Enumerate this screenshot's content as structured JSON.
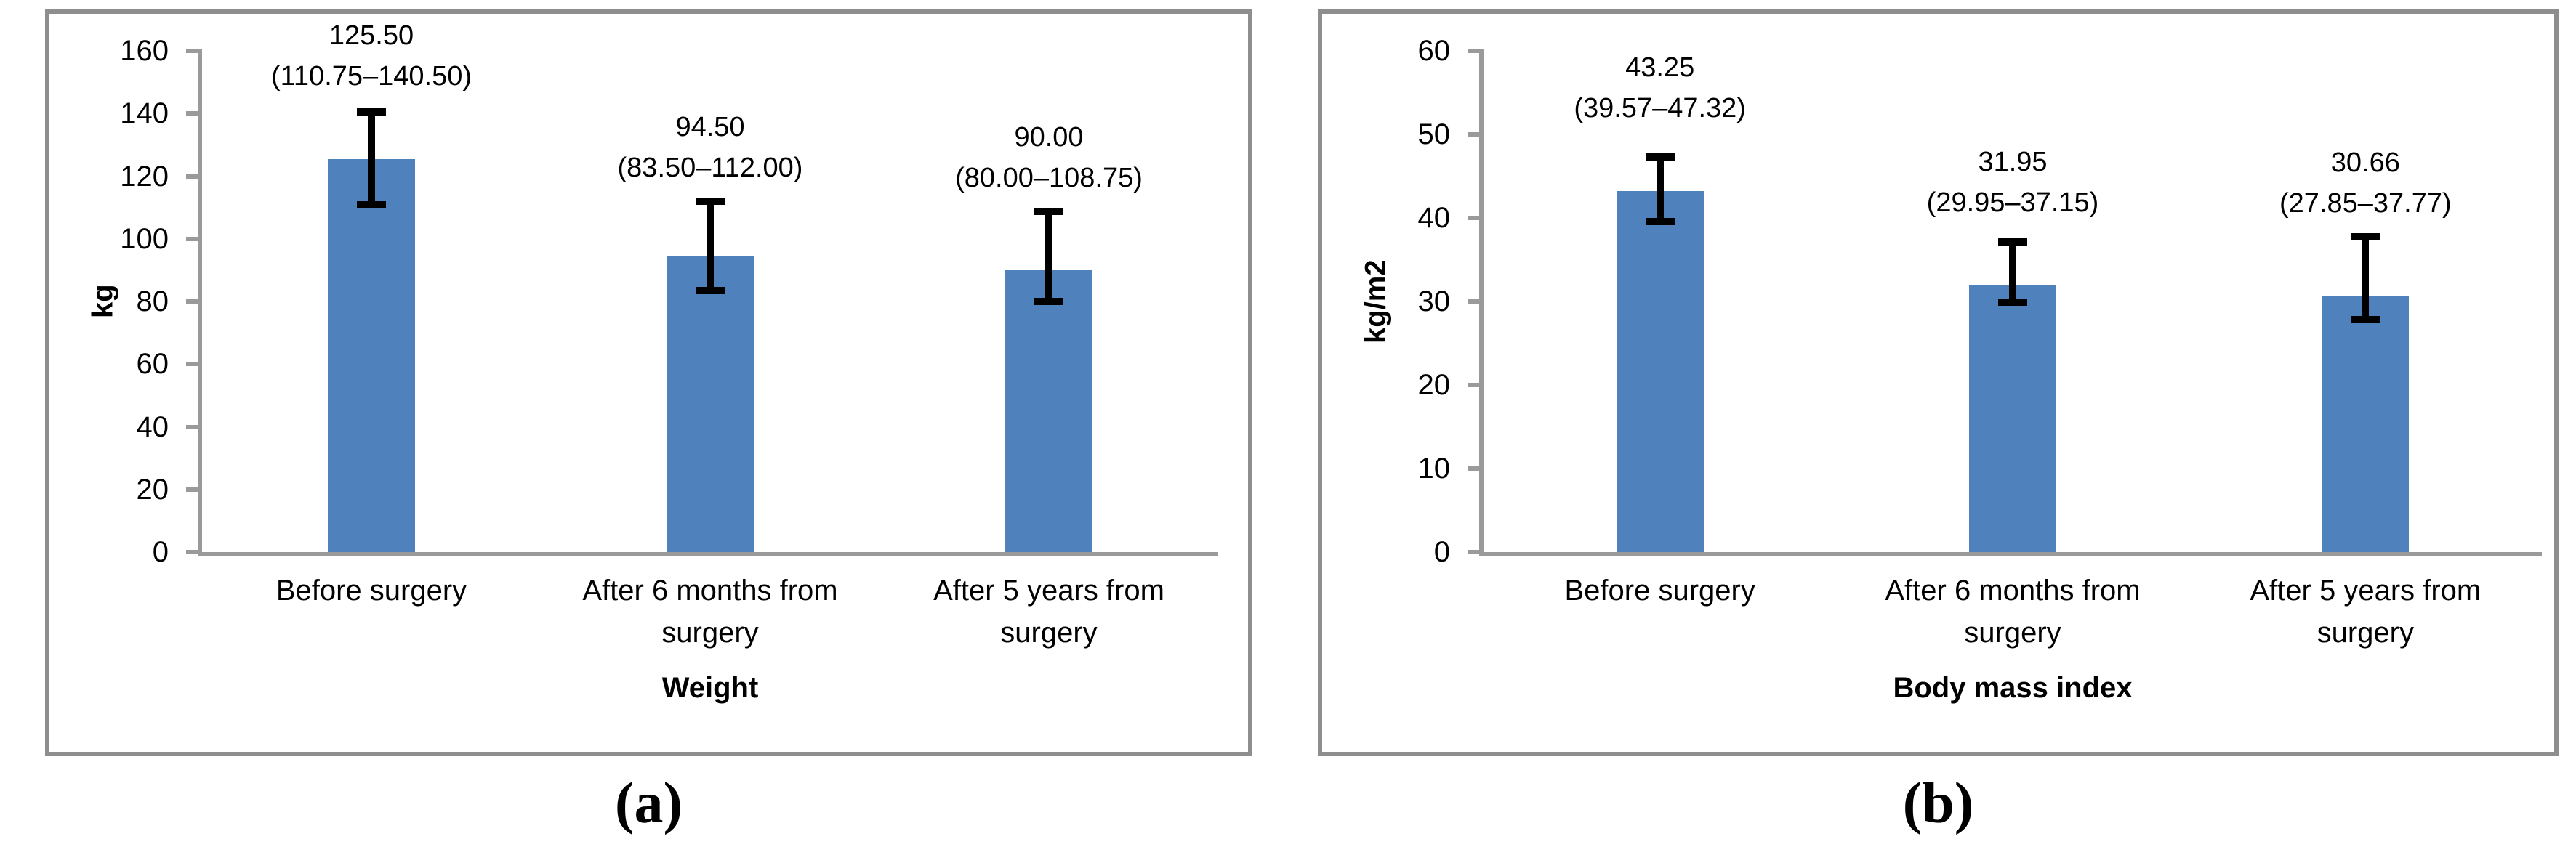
{
  "figure": {
    "captions": {
      "a": "(a)",
      "b": "(b)"
    }
  },
  "colors": {
    "bar": "#4f81bd",
    "axis": "#9a9a9a",
    "panel_border": "#8e8e8e",
    "error_bar": "#000000",
    "text": "#000000",
    "background": "#ffffff"
  },
  "chart_data": [
    {
      "type": "bar",
      "panel": "a",
      "title": "",
      "xlabel": "Weight",
      "ylabel": "kg",
      "ylim": [
        0,
        160
      ],
      "yticks": [
        0,
        20,
        40,
        60,
        80,
        100,
        120,
        140,
        160
      ],
      "grid": false,
      "legend": false,
      "categories": [
        "Before surgery",
        "After 6 months from surgery",
        "After 5 years from surgery"
      ],
      "values": [
        125.5,
        94.5,
        90.0
      ],
      "error_low": [
        110.75,
        83.5,
        80.0
      ],
      "error_high": [
        140.5,
        112.0,
        108.75
      ],
      "labels": [
        {
          "line1": "125.50",
          "line2": "(110.75–140.50)"
        },
        {
          "line1": "94.50",
          "line2": "(83.50–112.00)"
        },
        {
          "line1": "90.00",
          "line2": "(80.00–108.75)"
        }
      ]
    },
    {
      "type": "bar",
      "panel": "b",
      "title": "",
      "xlabel": "Body mass index",
      "ylabel": "kg/m2",
      "ylim": [
        0,
        60
      ],
      "yticks": [
        0,
        10,
        20,
        30,
        40,
        50,
        60
      ],
      "grid": false,
      "legend": false,
      "categories": [
        "Before surgery",
        "After 6 months from surgery",
        "After 5 years from surgery"
      ],
      "values": [
        43.25,
        31.95,
        30.66
      ],
      "error_low": [
        39.57,
        29.95,
        27.85
      ],
      "error_high": [
        47.32,
        37.15,
        37.77
      ],
      "labels": [
        {
          "line1": "43.25",
          "line2": "(39.57–47.32)"
        },
        {
          "line1": "31.95",
          "line2": "(29.95–37.15)"
        },
        {
          "line1": "30.66",
          "line2": "(27.85–37.77)"
        }
      ]
    }
  ]
}
